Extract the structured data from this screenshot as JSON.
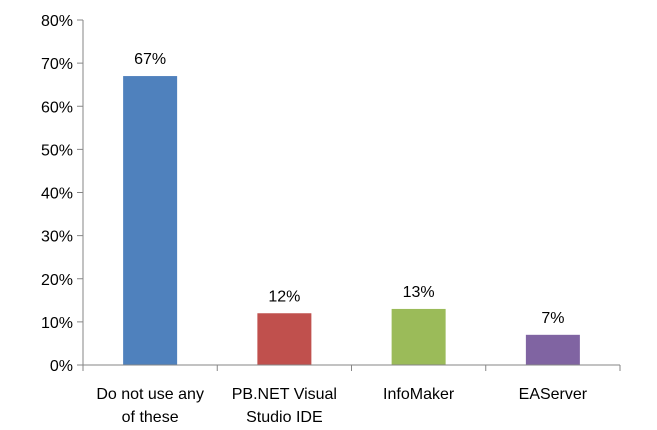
{
  "chart_data": {
    "type": "bar",
    "categories": [
      [
        "Do not use any",
        "of these"
      ],
      [
        "PB.NET Visual",
        "Studio IDE"
      ],
      [
        "InfoMaker"
      ],
      [
        "EAServer"
      ]
    ],
    "values": [
      67,
      12,
      13,
      7
    ],
    "data_labels": [
      "67%",
      "12%",
      "13%",
      "7%"
    ],
    "colors": [
      "#4f81bd",
      "#c0504d",
      "#9bbb59",
      "#8064a2"
    ],
    "yticks": [
      "0%",
      "10%",
      "20%",
      "30%",
      "40%",
      "50%",
      "60%",
      "70%",
      "80%"
    ],
    "ylim": [
      0,
      80
    ],
    "grid": false,
    "legend": "none"
  }
}
